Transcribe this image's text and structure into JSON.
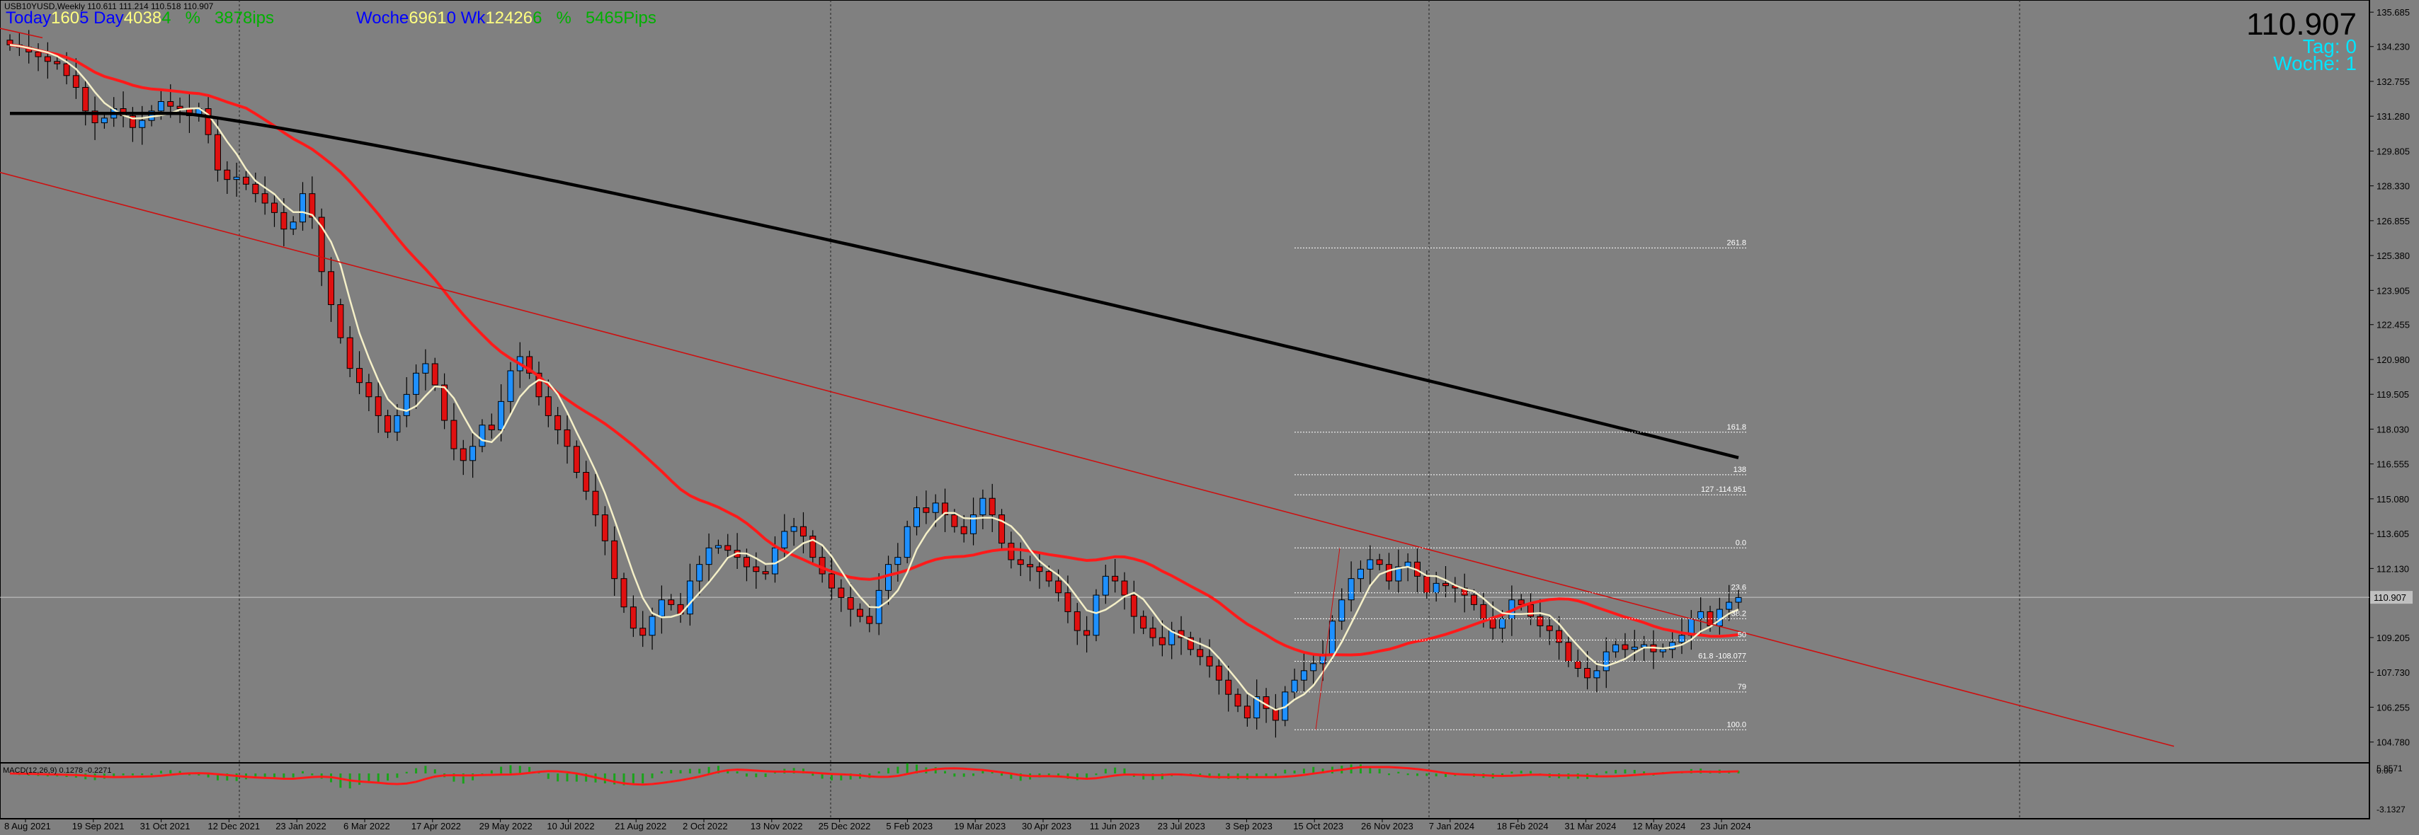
{
  "window": {
    "title": "USB10YUSD,Weekly  110.611 111.214 110.518 110.907"
  },
  "info_bar": {
    "today_label": "Today",
    "today_value": "160",
    "days_label": "5 Day",
    "days_value": "4038",
    "pct_prefix": "4",
    "pct_label": "%",
    "pips_value": "3878ips",
    "woche_label": "Woche",
    "woche_value": "6961",
    "wk_label": "0 Wk",
    "wk_value": "12426",
    "wk_pct_prefix": "6",
    "wk_pct_label": "%",
    "wk_pips": "5465Pips"
  },
  "right_panel": {
    "price": "110.907",
    "tag_line": "Tag: 0",
    "woche_line": "Woche: 1"
  },
  "colors": {
    "background": "#808080",
    "bull_candle": "#1e90ff",
    "bear_candle": "#e01010",
    "ma_fast": "#f5f0c8",
    "ma_mid": "#ff1a1a",
    "ma_slow": "#000000",
    "trendline": "#cc1010",
    "macd_hist": "#1aa31a",
    "macd_signal": "#ff1a1a",
    "cyan_text": "#00e5ff",
    "blue_text": "#0000ff",
    "yellow_text": "#ffff80",
    "green_text": "#00b000"
  },
  "chart_data": {
    "type": "candlestick",
    "symbol": "USB10YUSD",
    "timeframe": "Weekly",
    "ohlc_header": {
      "open": 110.611,
      "high": 111.214,
      "low": 110.518,
      "close": 110.907
    },
    "ylim": [
      103.9,
      136.2
    ],
    "y_ticks": [
      "135.685",
      "134.230",
      "132.755",
      "131.280",
      "129.805",
      "128.330",
      "126.855",
      "125.380",
      "123.905",
      "122.455",
      "120.980",
      "119.505",
      "118.030",
      "116.555",
      "115.080",
      "113.605",
      "112.130",
      "110.907",
      "109.205",
      "107.730",
      "106.255",
      "104.780"
    ],
    "x_tick_labels": [
      "8 Aug 2021",
      "19 Sep 2021",
      "31 Oct 2021",
      "12 Dec 2021",
      "23 Jan 2022",
      "6 Mar 2022",
      "17 Apr 2022",
      "29 May 2022",
      "10 Jul 2022",
      "21 Aug 2022",
      "2 Oct 2022",
      "13 Nov 2022",
      "25 Dec 2022",
      "5 Feb 2023",
      "19 Mar 2023",
      "30 Apr 2023",
      "11 Jun 2023",
      "23 Jul 2023",
      "3 Sep 2023",
      "15 Oct 2023",
      "26 Nov 2023",
      "7 Jan 2024",
      "18 Feb 2024",
      "31 Mar 2024",
      "12 May 2024",
      "23 Jun 2024"
    ],
    "current_price_label": "110.907",
    "fib_levels": [
      {
        "label": "261.8",
        "value": 125.7
      },
      {
        "label": "161.8",
        "value": 117.9
      },
      {
        "label": "138",
        "value": 116.1
      },
      {
        "label": "127 -114.951",
        "value": 115.25
      },
      {
        "label": "0.0",
        "value": 113.0
      },
      {
        "label": "23.6",
        "value": 111.1
      },
      {
        "label": "38.2",
        "value": 110.0
      },
      {
        "label": "50",
        "value": 109.1
      },
      {
        "label": "61.8 -108.077",
        "value": 108.2
      },
      {
        "label": "79",
        "value": 106.9
      },
      {
        "label": "100.0",
        "value": 105.3
      }
    ],
    "closes": [
      134.3,
      134.2,
      134.0,
      133.8,
      133.6,
      133.5,
      133.0,
      132.5,
      131.5,
      131.0,
      131.2,
      131.6,
      131.3,
      130.8,
      131.1,
      131.5,
      131.9,
      131.7,
      131.6,
      131.3,
      131.6,
      130.5,
      129.0,
      128.6,
      128.7,
      128.4,
      128.0,
      127.6,
      127.2,
      126.5,
      126.8,
      128.0,
      127.0,
      124.7,
      123.3,
      121.9,
      120.6,
      120.0,
      119.4,
      118.6,
      117.9,
      118.6,
      119.5,
      120.4,
      120.8,
      119.9,
      118.4,
      117.2,
      116.7,
      117.3,
      118.2,
      118.0,
      119.2,
      120.5,
      121.1,
      120.4,
      119.4,
      118.6,
      118.0,
      117.3,
      116.2,
      115.4,
      114.4,
      113.3,
      111.7,
      110.5,
      109.6,
      109.3,
      110.1,
      110.8,
      110.6,
      110.2,
      111.6,
      112.3,
      113.0,
      113.1,
      112.9,
      112.6,
      112.2,
      112.0,
      111.9,
      113.0,
      113.7,
      113.9,
      113.5,
      112.6,
      111.9,
      111.3,
      110.9,
      110.4,
      110.1,
      109.8,
      111.2,
      112.3,
      112.6,
      113.9,
      114.7,
      114.5,
      114.9,
      114.4,
      113.9,
      113.6,
      114.4,
      115.1,
      114.4,
      113.2,
      112.5,
      112.3,
      112.2,
      112.0,
      111.6,
      111.1,
      110.3,
      109.5,
      109.3,
      111.0,
      111.8,
      111.6,
      111.0,
      110.1,
      109.6,
      109.2,
      108.9,
      109.5,
      109.2,
      108.7,
      108.4,
      108.0,
      107.4,
      106.8,
      106.3,
      105.8,
      106.7,
      106.2,
      105.7,
      106.9,
      107.4,
      107.8,
      108.1,
      108.5,
      109.9,
      110.8,
      111.7,
      112.1,
      112.5,
      112.3,
      111.6,
      112.2,
      112.4,
      111.8,
      111.1,
      111.5,
      111.4,
      111.3,
      111.0,
      110.6,
      110.0,
      109.6,
      110.0,
      110.8,
      110.6,
      110.1,
      109.7,
      109.5,
      109.0,
      108.2,
      107.9,
      107.5,
      107.8,
      108.6,
      108.9,
      108.7,
      108.8,
      108.9,
      108.6,
      108.7,
      109.0,
      109.3,
      110.0,
      110.3,
      109.7,
      110.4,
      110.7,
      110.9
    ],
    "macd_label": "MACD(12,26,9) 0.1278 -0.2271",
    "macd_y_ticks": [
      "5.8571",
      "0.00",
      "-3.1327"
    ],
    "grid": false
  }
}
